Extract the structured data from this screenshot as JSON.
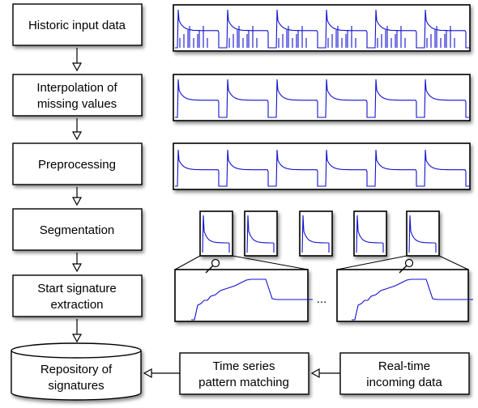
{
  "steps": {
    "historic": [
      "Historic input data"
    ],
    "interpolation": [
      "Interpolation of",
      "missing values"
    ],
    "preprocessing": [
      "Preprocessing"
    ],
    "segmentation": [
      "Segmentation"
    ],
    "signature": [
      "Start signature",
      "extraction"
    ],
    "repository": [
      "Repository of",
      "signatures"
    ],
    "matching": [
      "Time series",
      "pattern matching"
    ],
    "realtime": [
      "Real-time",
      "incoming data"
    ]
  },
  "ellipsis": "...",
  "colors": {
    "signal": "#1010d0",
    "stroke": "#000000",
    "fill": "#ffffff"
  },
  "icons": [
    "magnifier-icon"
  ]
}
